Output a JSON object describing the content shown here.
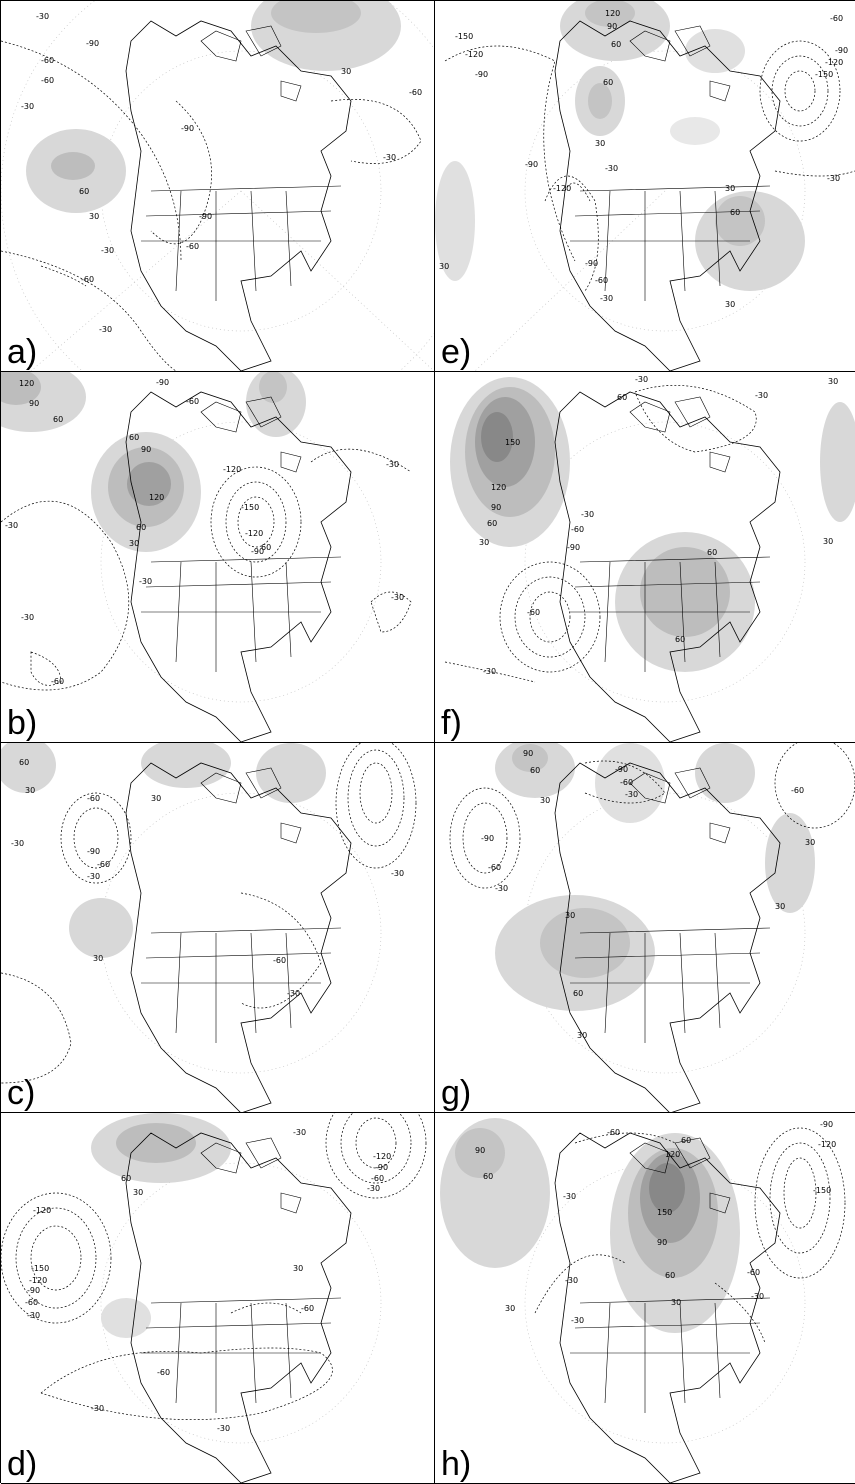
{
  "panels": [
    {
      "id": "a",
      "label": "a)",
      "contour_labels": [
        "-30",
        "-90",
        "-60",
        "-60",
        "-30",
        "-90",
        "60",
        "30",
        "-90",
        "-30",
        "-60",
        "-60",
        "-30",
        "-30",
        "30",
        "-60"
      ]
    },
    {
      "id": "b",
      "label": "b)",
      "contour_labels": [
        "-90",
        "-60",
        "120",
        "90",
        "60",
        "60",
        "90",
        "120",
        "60",
        "30",
        "-120",
        "-150",
        "-120",
        "-90",
        "60",
        "-30",
        "-30",
        "-30",
        "-30",
        "-60",
        "-30"
      ]
    },
    {
      "id": "c",
      "label": "c)",
      "contour_labels": [
        "60",
        "30",
        "-30",
        "-60",
        "-90",
        "-60",
        "-30",
        "30",
        "-30",
        "30",
        "-60",
        "-30"
      ]
    },
    {
      "id": "d",
      "label": "d)",
      "contour_labels": [
        "-120",
        "-150",
        "-120",
        "-90",
        "-60",
        "-30",
        "60",
        "30",
        "-120",
        "-90",
        "-60",
        "-30",
        "-30",
        "-60",
        "-60",
        "-30",
        "-30",
        "30"
      ]
    },
    {
      "id": "e",
      "label": "e)",
      "contour_labels": [
        "120",
        "90",
        "-150",
        "-120",
        "-90",
        "60",
        "60",
        "30",
        "-30",
        "-60",
        "-90",
        "-120",
        "-150",
        "-90",
        "-120",
        "-90",
        "-60",
        "-30",
        "30",
        "60",
        "30",
        "-30",
        "30"
      ]
    },
    {
      "id": "f",
      "label": "f)",
      "contour_labels": [
        "-30",
        "60",
        "-30",
        "30",
        "150",
        "120",
        "90",
        "60",
        "30",
        "-30",
        "-60",
        "-90",
        "-60",
        "60",
        "60",
        "-30",
        "30"
      ]
    },
    {
      "id": "g",
      "label": "g)",
      "contour_labels": [
        "90",
        "60",
        "30",
        "-90",
        "-60",
        "-30",
        "30",
        "60",
        "30",
        "-90",
        "-60",
        "-30",
        "-60",
        "30",
        "30"
      ]
    },
    {
      "id": "h",
      "label": "h)",
      "contour_labels": [
        "90",
        "60",
        "-60",
        "-30",
        "60",
        "120",
        "150",
        "90",
        "60",
        "30",
        "30",
        "-30",
        "-90",
        "-120",
        "-150",
        "-60",
        "-30",
        "-30"
      ]
    }
  ]
}
